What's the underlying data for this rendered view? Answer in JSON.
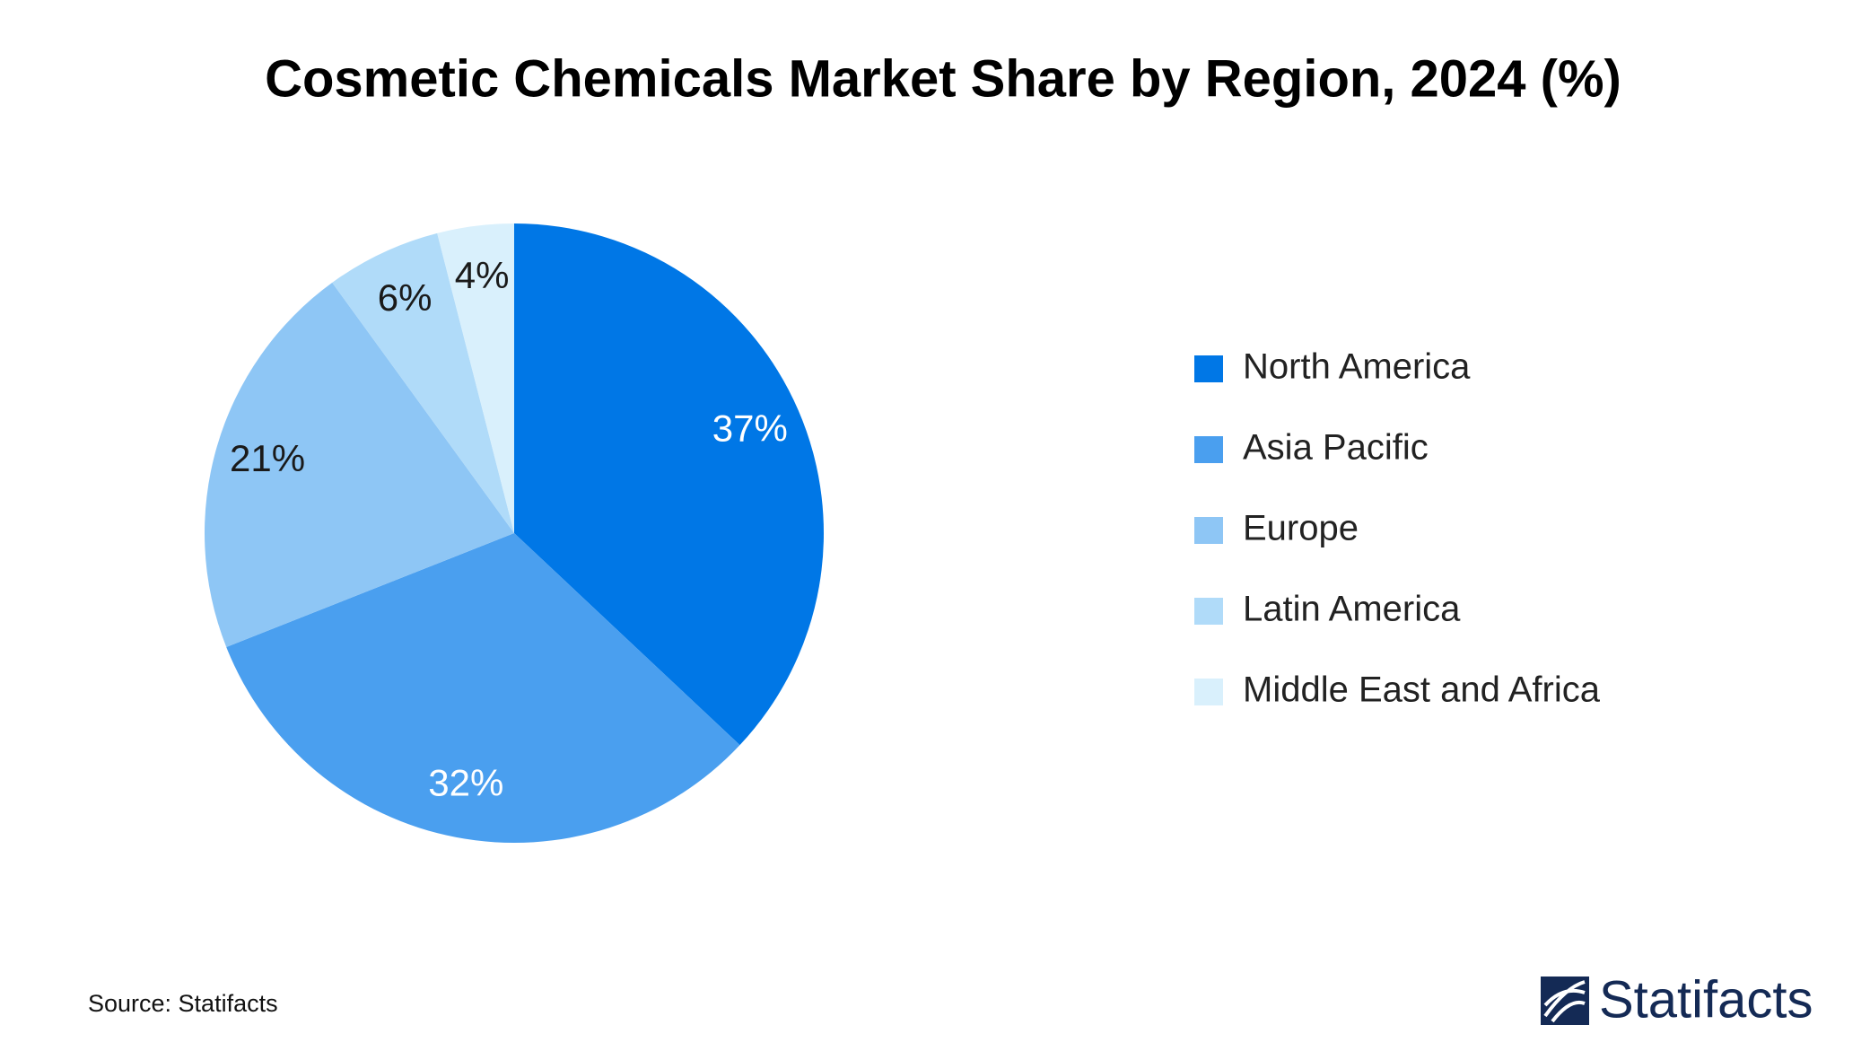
{
  "chart_data": {
    "type": "pie",
    "title": "Cosmetic Chemicals Market Share by Region, 2024 (%)",
    "categories": [
      "North America",
      "Asia Pacific",
      "Europe",
      "Latin America",
      "Middle East and Africa"
    ],
    "values": [
      37,
      32,
      21,
      6,
      4
    ],
    "value_labels": [
      "37%",
      "32%",
      "21%",
      "6%",
      "4%"
    ],
    "colors": [
      "#0077e6",
      "#4a9fef",
      "#8ec6f5",
      "#b0dbf9",
      "#d9f0fc"
    ],
    "legend": "right",
    "source": "Source: Statifacts",
    "brand": "Statifacts"
  }
}
